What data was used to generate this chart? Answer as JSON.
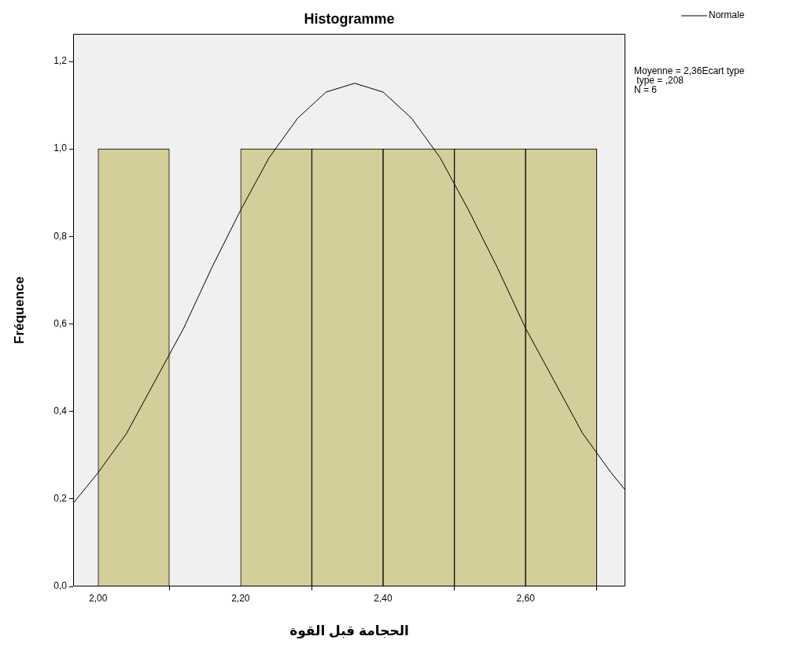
{
  "chart_data": {
    "type": "histogram",
    "title": "Histogramme",
    "xlabel": "الحجامة قبل القوة",
    "ylabel": "Fréquence",
    "bins": [
      2.0,
      2.1,
      2.2,
      2.3,
      2.4,
      2.5,
      2.6,
      2.7
    ],
    "values": [
      1,
      0,
      1,
      1,
      1,
      1,
      1
    ],
    "color": "#d3ce9a",
    "series": [
      {
        "type": "line",
        "name": "Normale",
        "color": "#000000",
        "x": [
          1.965,
          2.0,
          2.04,
          2.08,
          2.12,
          2.16,
          2.2,
          2.24,
          2.28,
          2.32,
          2.36,
          2.4,
          2.44,
          2.48,
          2.52,
          2.56,
          2.6,
          2.64,
          2.68,
          2.72,
          2.74
        ],
        "values": [
          0.19,
          0.26,
          0.35,
          0.47,
          0.59,
          0.73,
          0.86,
          0.98,
          1.07,
          1.13,
          1.15,
          1.13,
          1.07,
          0.98,
          0.86,
          0.73,
          0.59,
          0.47,
          0.35,
          0.26,
          0.22
        ]
      }
    ],
    "xlim": [
      1.965,
      2.74
    ],
    "xticks": [
      {
        "value": 2.0,
        "label": "2,00"
      },
      {
        "value": 2.2,
        "label": "2,20"
      },
      {
        "value": 2.4,
        "label": "2,40"
      },
      {
        "value": 2.6,
        "label": "2,60"
      }
    ],
    "ylim": [
      0,
      1.263
    ],
    "yticks": [
      {
        "value": 0,
        "label": "0,0"
      },
      {
        "value": 0.2,
        "label": "0,2"
      },
      {
        "value": 0.4,
        "label": "0,4"
      },
      {
        "value": 0.6,
        "label": "0,6"
      },
      {
        "value": 0.8,
        "label": "0,8"
      },
      {
        "value": 1.0,
        "label": "1,0"
      },
      {
        "value": 1.2,
        "label": "1,2"
      }
    ],
    "grid": false,
    "legend": "top right",
    "marker": "none",
    "annotations": [
      "Moyenne = 2,36Ecart type",
      " type = ,208",
      "N = 6"
    ]
  }
}
